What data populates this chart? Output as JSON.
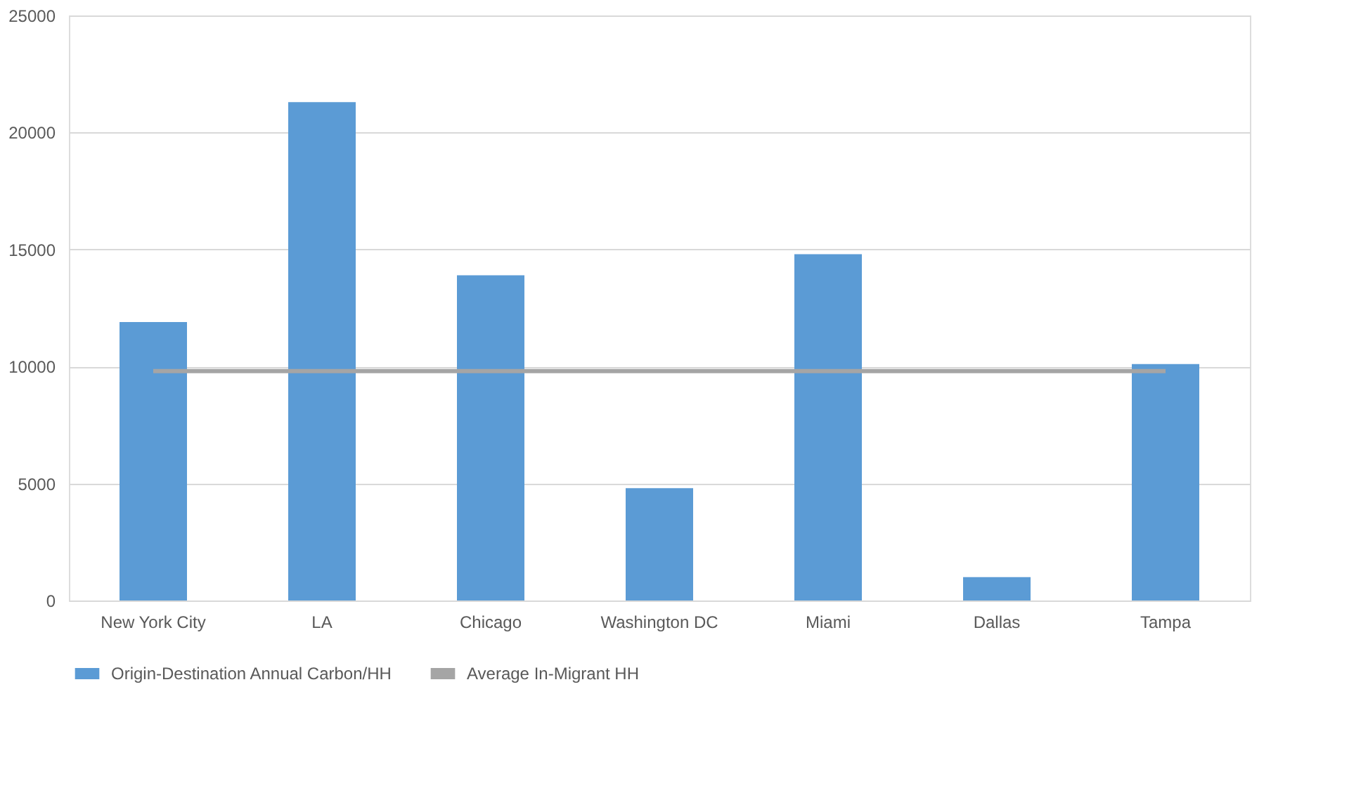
{
  "chart_data": {
    "type": "bar",
    "categories": [
      "New York City",
      "LA",
      "Chicago",
      "Washington DC",
      "Miami",
      "Dallas",
      "Tampa"
    ],
    "series": [
      {
        "name": "Origin-Destination Annual Carbon/HH",
        "color": "#5b9bd5",
        "values": [
          11900,
          21300,
          13900,
          4800,
          14800,
          1000,
          10100
        ]
      },
      {
        "name": "Average In-Migrant HH",
        "type": "line",
        "color": "#a5a5a5",
        "values": [
          9800,
          9800,
          9800,
          9800,
          9800,
          9800,
          9800
        ]
      }
    ],
    "ylim": [
      0,
      25000
    ],
    "yticks": [
      0,
      5000,
      10000,
      15000,
      20000,
      25000
    ],
    "grid": "y",
    "legend": "bottom"
  }
}
